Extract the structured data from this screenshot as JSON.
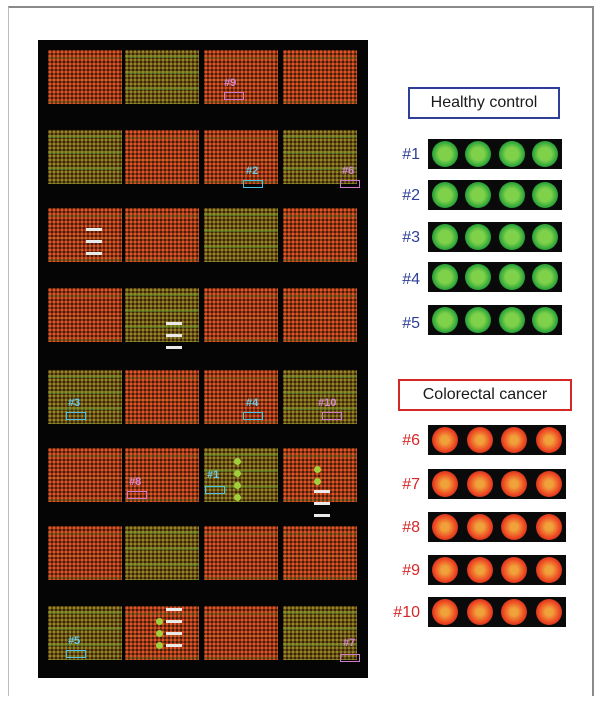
{
  "array_markers": [
    {
      "label": "#9",
      "color": "pink"
    },
    {
      "label": "#2",
      "color": "blue"
    },
    {
      "label": "#6",
      "color": "pink"
    },
    {
      "label": "#3",
      "color": "blue"
    },
    {
      "label": "#4",
      "color": "blue"
    },
    {
      "label": "#10",
      "color": "pink"
    },
    {
      "label": "#8",
      "color": "pink"
    },
    {
      "label": "#1",
      "color": "blue"
    },
    {
      "label": "#5",
      "color": "blue"
    },
    {
      "label": "#7",
      "color": "pink"
    }
  ],
  "legend": {
    "healthy": "Healthy control",
    "cancer": "Colorectal cancer"
  },
  "healthy_strips": [
    "#1",
    "#2",
    "#3",
    "#4",
    "#5"
  ],
  "cancer_strips": [
    "#6",
    "#7",
    "#8",
    "#9",
    "#10"
  ],
  "colors": {
    "healthy_accent": "#2d3f98",
    "cancer_accent": "#d62727",
    "marker_blue": "#4ec3e6",
    "marker_pink": "#d07acb",
    "spot_red": "#ee4422",
    "spot_green": "#2fa83a"
  }
}
